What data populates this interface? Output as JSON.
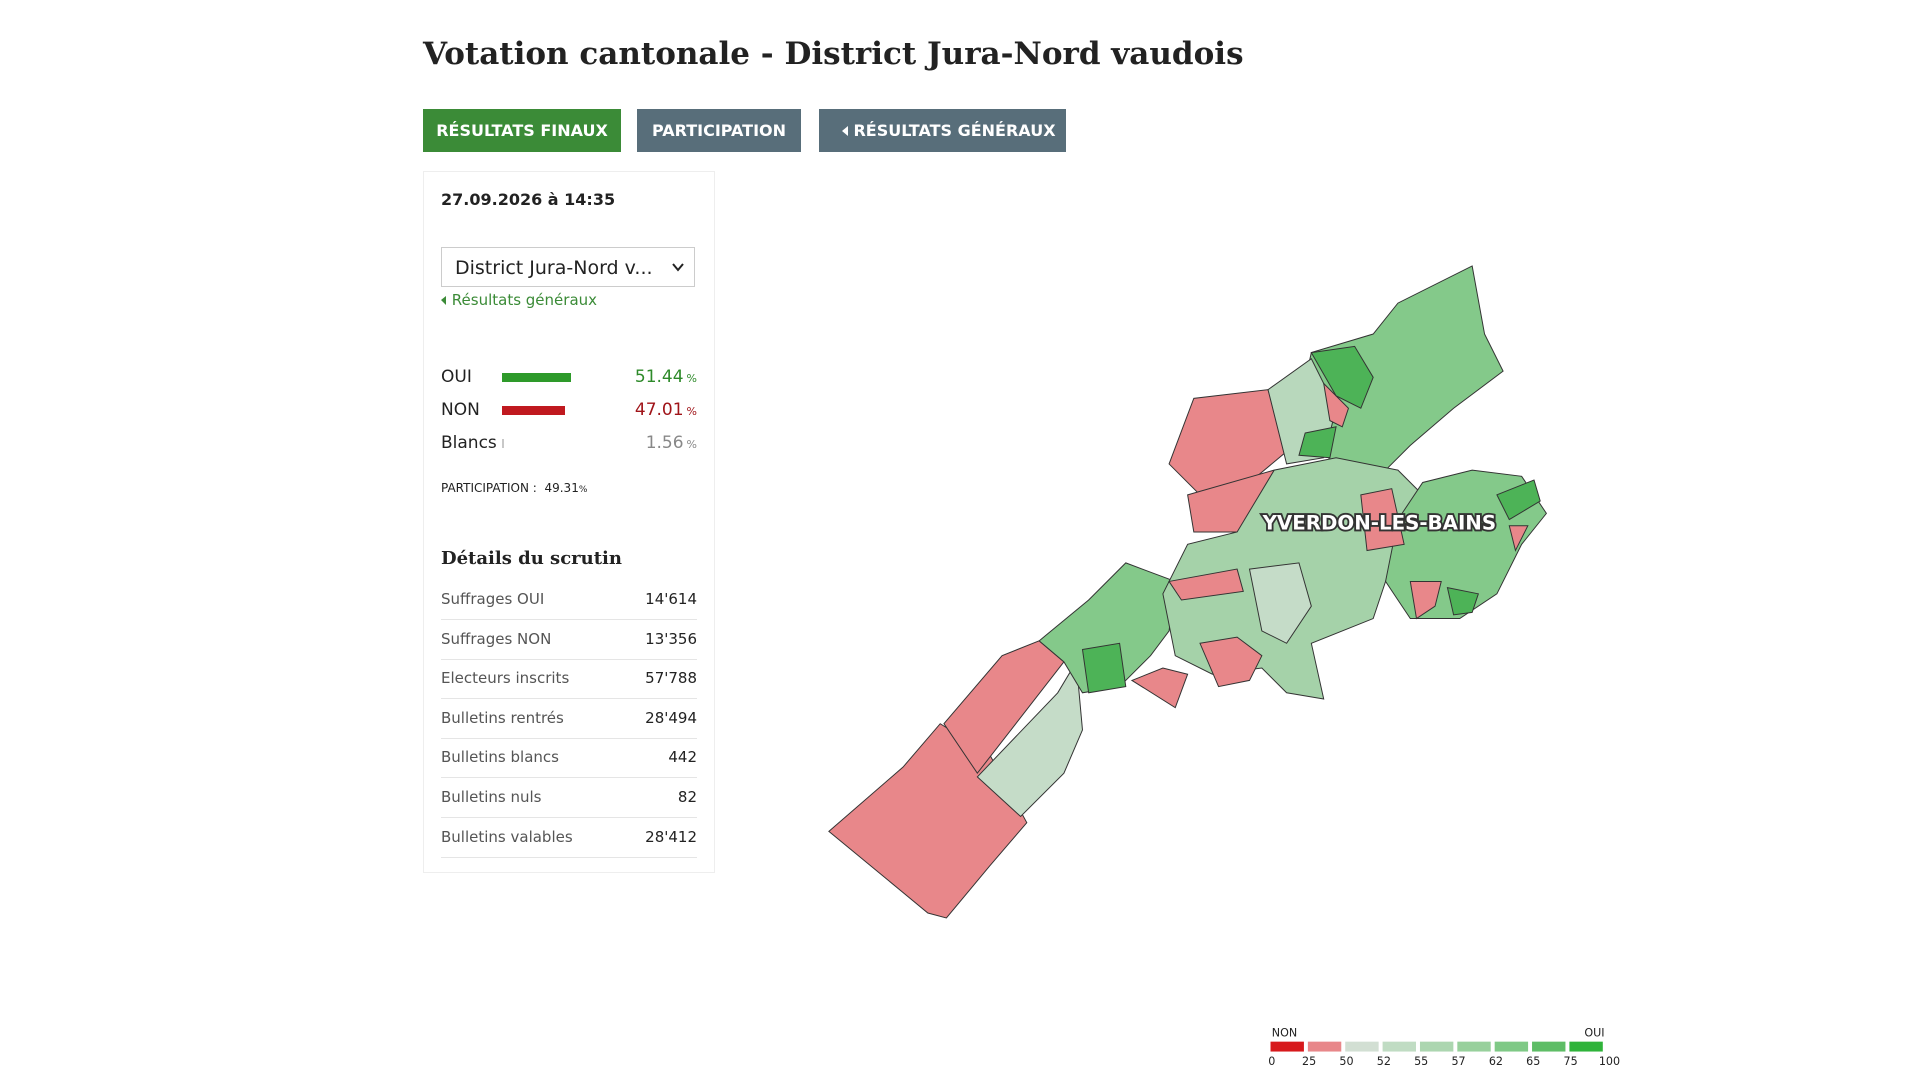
{
  "header": {
    "title": "Votation cantonale - District Jura-Nord vaudois"
  },
  "tabs": [
    "RÉSULTATS FINAUX",
    "PARTICIPATION",
    "RÉSULTATS GÉNÉRAUX"
  ],
  "panel": {
    "date": "27.09.2026 à 14:35",
    "select": "District Jura-Nord v...",
    "link": "Résultats généraux",
    "results": [
      {
        "label": "OUI",
        "value": 51.44,
        "unit": "%",
        "color": "#2e9a2a"
      },
      {
        "label": "NON",
        "value": 47.01,
        "unit": "%",
        "color": "#c0191f"
      },
      {
        "label": "Blancs",
        "value": 1.56,
        "unit": "%",
        "color": "#c8c8c8"
      }
    ],
    "participation": {
      "label": "PARTICIPATION :",
      "value": 49.31,
      "unit": "%"
    },
    "details": {
      "title": "Détails du scrutin",
      "rows": [
        [
          "Suffrages OUI",
          "14'614"
        ],
        [
          "Suffrages NON",
          "13'356"
        ],
        [
          "Electeurs inscrits",
          "57'788"
        ],
        [
          "Bulletins rentrés",
          "28'494"
        ],
        [
          "Bulletins blancs",
          "442"
        ],
        [
          "Bulletins nuls",
          "82"
        ],
        [
          "Bulletins valables",
          "28'412"
        ]
      ]
    }
  },
  "map": {
    "label": "YVERDON-LES-BAINS",
    "legend": {
      "non": "NON",
      "oui": "OUI",
      "ticks": [
        0,
        25,
        50,
        52,
        55,
        57,
        62,
        65,
        75,
        100
      ],
      "colors": [
        "#d7191c",
        "#e8878a",
        "#d2dfd3",
        "#c0dcc3",
        "#acd6b0",
        "#98d09c",
        "#7fc986",
        "#5ebd66",
        "#2fb33a"
      ]
    }
  }
}
